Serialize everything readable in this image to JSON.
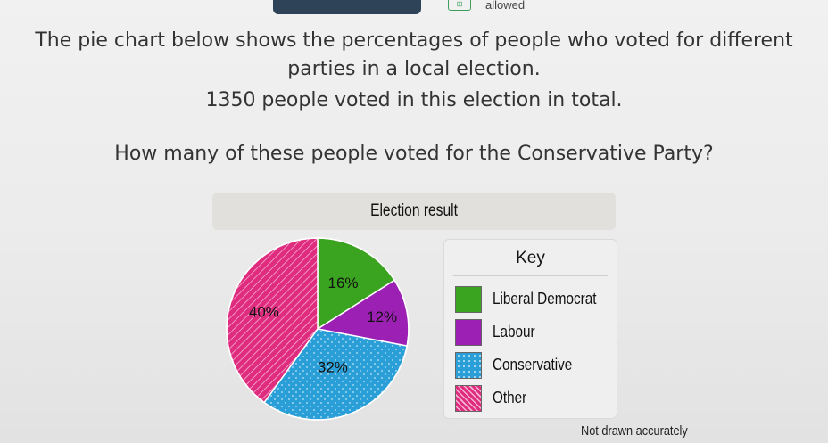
{
  "toolbar": {
    "allowed_label": "allowed",
    "calculator_icon": "calculator-icon"
  },
  "question": {
    "line1": "The pie chart below shows the percentages of people who voted for different",
    "line2": "parties in a local election.",
    "line3": "1350 people voted in this election in total.",
    "line4": "How many of these people voted for the Conservative Party?"
  },
  "chart": {
    "title": "Election result",
    "key_title": "Key",
    "note": "Not drawn accurately"
  },
  "chart_data": {
    "type": "pie",
    "title": "Election result",
    "categories": [
      "Liberal Democrat",
      "Labour",
      "Conservative",
      "Other"
    ],
    "values": [
      16,
      12,
      32,
      40
    ],
    "labels": [
      "16%",
      "12%",
      "32%",
      "40%"
    ],
    "colors": [
      "#3aa31f",
      "#9c20b4",
      "#2a9ed6",
      "#e02c7e"
    ],
    "legend": "right"
  }
}
